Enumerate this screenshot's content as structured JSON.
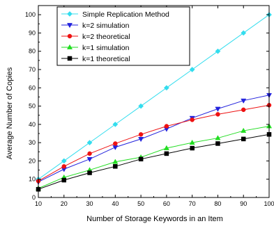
{
  "chart_data": {
    "type": "line",
    "xlabel": "Number of Storage Keywords in an Item",
    "ylabel": "Average Number of Copies",
    "xlim": [
      10,
      100
    ],
    "ylim": [
      0,
      105
    ],
    "x_ticks": [
      10,
      20,
      30,
      40,
      50,
      60,
      70,
      80,
      90,
      100
    ],
    "y_ticks": [
      0,
      10,
      20,
      30,
      40,
      50,
      60,
      70,
      80,
      90,
      100
    ],
    "grid": false,
    "legend_position": "top-left",
    "x": [
      10,
      20,
      30,
      40,
      50,
      60,
      70,
      80,
      90,
      100
    ],
    "series": [
      {
        "name": "Simple Replication Method",
        "color": "#33ddee",
        "marker": "diamond",
        "values": [
          10,
          20,
          30,
          40,
          50,
          60,
          70,
          80,
          90,
          100
        ]
      },
      {
        "name": "k=2 simulation",
        "color": "#2222dd",
        "marker": "triangle-down",
        "values": [
          8.5,
          15.5,
          21,
          27.5,
          32,
          37.5,
          43.5,
          48.5,
          53,
          56
        ]
      },
      {
        "name": "k=2 theoretical",
        "color": "#ee1111",
        "marker": "circle",
        "values": [
          9,
          17,
          24,
          29.5,
          34.5,
          39,
          42.5,
          45.5,
          48,
          50.5
        ]
      },
      {
        "name": "k=1 simulation",
        "color": "#22dd22",
        "marker": "triangle-up",
        "values": [
          5,
          11,
          15,
          19.5,
          22,
          27,
          30,
          32.5,
          36.5,
          39
        ]
      },
      {
        "name": "k=1 theoretical",
        "color": "#000000",
        "marker": "square",
        "values": [
          4.5,
          9.5,
          13.5,
          17,
          21,
          24,
          27,
          29.5,
          32,
          34.5
        ]
      }
    ]
  }
}
